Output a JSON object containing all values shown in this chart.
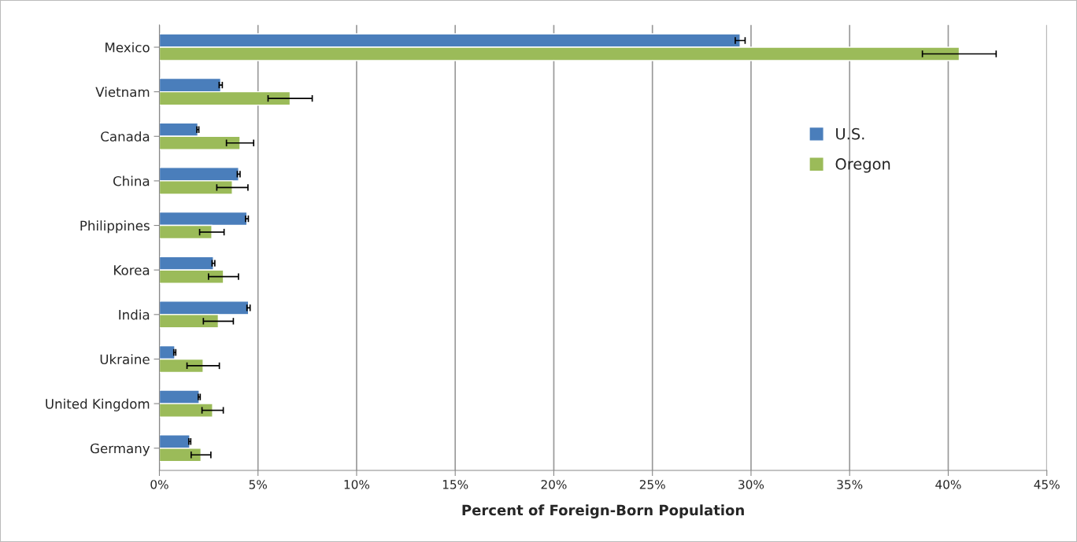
{
  "chart_data": {
    "type": "bar",
    "orientation": "horizontal",
    "xlabel": "Percent of Foreign-Born Population",
    "categories": [
      "Mexico",
      "Vietnam",
      "Canada",
      "China",
      "Philippines",
      "Korea",
      "India",
      "Ukraine",
      "United Kingdom",
      "Germany"
    ],
    "series": [
      {
        "name": "U.S.",
        "color": "#4a7ebb",
        "values": [
          29.45,
          3.11,
          1.95,
          4.02,
          4.44,
          2.74,
          4.52,
          0.78,
          2.02,
          1.54
        ],
        "errors": [
          0.25,
          0.08,
          0.05,
          0.07,
          0.07,
          0.07,
          0.08,
          0.05,
          0.05,
          0.05
        ]
      },
      {
        "name": "Oregon",
        "color": "#9bbb59",
        "values": [
          40.56,
          6.63,
          4.09,
          3.7,
          2.66,
          3.25,
          2.99,
          2.22,
          2.7,
          2.11
        ],
        "errors": [
          1.87,
          1.12,
          0.69,
          0.79,
          0.62,
          0.76,
          0.76,
          0.82,
          0.54,
          0.5
        ]
      }
    ],
    "xlim": [
      0,
      45
    ],
    "xticks": [
      {
        "value": 0,
        "label": "0%"
      },
      {
        "value": 5,
        "label": "5%"
      },
      {
        "value": 10,
        "label": "10%"
      },
      {
        "value": 15,
        "label": "15%"
      },
      {
        "value": 20,
        "label": "20%"
      },
      {
        "value": 25,
        "label": "25%"
      },
      {
        "value": 30,
        "label": "30%"
      },
      {
        "value": 35,
        "label": "35%"
      },
      {
        "value": 40,
        "label": "40%"
      },
      {
        "value": 45,
        "label": "45%"
      }
    ],
    "grid": "x",
    "legend": "top right"
  }
}
